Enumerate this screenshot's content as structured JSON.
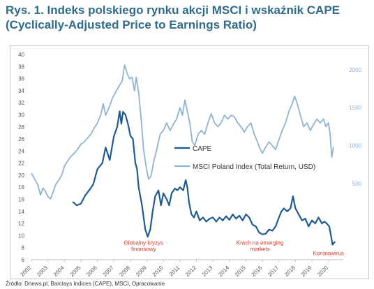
{
  "title_line1": "Rys. 1. Indeks polskiego rynku akcji MSCI i wskaźnik CAPE",
  "title_line2": "(Cyclically-Adjusted Price to Earnings Ratio)",
  "source": "Źródło: Dnews.pl, Barclays Indices (CAPE), MSCI, Opracowanie",
  "chart_data": {
    "type": "line",
    "title": "Rys. 1. Indeks polskiego rynku akcji MSCI i wskaźnik CAPE (Cyclically-Adjusted Price to Earnings Ratio)",
    "xlabel": "",
    "ylabel": "",
    "x_ticks": [
      "2002",
      "2003",
      "2004",
      "2005",
      "2006",
      "2007",
      "2008",
      "2009",
      "2010",
      "2011",
      "2012",
      "2013",
      "2014",
      "2015",
      "2016",
      "2017",
      "2018",
      "2019",
      "2020"
    ],
    "xlim": [
      2002,
      2020.9
    ],
    "left_axis": {
      "ylim": [
        6,
        40
      ],
      "ticks": [
        6,
        8,
        10,
        12,
        14,
        16,
        18,
        20,
        22,
        24,
        26,
        28,
        30,
        32,
        34,
        36,
        38,
        40
      ]
    },
    "right_axis": {
      "ylim": [
        -500,
        2200
      ],
      "ticks": [
        500,
        1000,
        1500,
        2000
      ]
    },
    "grid": false,
    "legend_position": "center",
    "colors": {
      "cape": "#1f5b92",
      "msci": "#8fb3d3",
      "annotation": "#d93a2b",
      "axis_text": "#555555",
      "right_axis_text": "#8fb3d3"
    },
    "series": [
      {
        "name": "CAPE",
        "axis": "left",
        "points": [
          [
            2004.5,
            15.6
          ],
          [
            2004.75,
            15.0
          ],
          [
            2005.0,
            15.3
          ],
          [
            2005.25,
            16.6
          ],
          [
            2005.5,
            17.5
          ],
          [
            2005.75,
            18.5
          ],
          [
            2006.0,
            21.0
          ],
          [
            2006.3,
            22.0
          ],
          [
            2006.5,
            24.6
          ],
          [
            2006.75,
            22.5
          ],
          [
            2007.0,
            26.5
          ],
          [
            2007.2,
            28.0
          ],
          [
            2007.35,
            30.6
          ],
          [
            2007.45,
            28.5
          ],
          [
            2007.55,
            30.5
          ],
          [
            2007.7,
            30.0
          ],
          [
            2007.85,
            28.5
          ],
          [
            2008.0,
            26.5
          ],
          [
            2008.15,
            26.0
          ],
          [
            2008.3,
            22.0
          ],
          [
            2008.4,
            21.0
          ],
          [
            2008.5,
            18.0
          ],
          [
            2008.7,
            15.0
          ],
          [
            2008.9,
            11.0
          ],
          [
            2009.05,
            9.8
          ],
          [
            2009.2,
            11.0
          ],
          [
            2009.35,
            14.0
          ],
          [
            2009.5,
            16.5
          ],
          [
            2009.7,
            17.5
          ],
          [
            2009.85,
            15.0
          ],
          [
            2010.0,
            17.0
          ],
          [
            2010.2,
            16.0
          ],
          [
            2010.35,
            15.0
          ],
          [
            2010.5,
            17.0
          ],
          [
            2010.7,
            17.8
          ],
          [
            2010.85,
            17.5
          ],
          [
            2011.0,
            18.0
          ],
          [
            2011.2,
            17.5
          ],
          [
            2011.35,
            19.2
          ],
          [
            2011.45,
            18.0
          ],
          [
            2011.55,
            15.5
          ],
          [
            2011.7,
            13.5
          ],
          [
            2011.85,
            13.0
          ],
          [
            2012.0,
            14.0
          ],
          [
            2012.2,
            12.5
          ],
          [
            2012.4,
            13.0
          ],
          [
            2012.6,
            12.3
          ],
          [
            2012.8,
            12.8
          ],
          [
            2013.0,
            13.0
          ],
          [
            2013.2,
            12.3
          ],
          [
            2013.4,
            13.0
          ],
          [
            2013.6,
            12.5
          ],
          [
            2013.8,
            13.2
          ],
          [
            2014.0,
            12.6
          ],
          [
            2014.2,
            13.5
          ],
          [
            2014.4,
            12.8
          ],
          [
            2014.6,
            13.3
          ],
          [
            2014.8,
            12.5
          ],
          [
            2015.0,
            13.5
          ],
          [
            2015.2,
            13.0
          ],
          [
            2015.4,
            11.8
          ],
          [
            2015.6,
            11.5
          ],
          [
            2015.8,
            10.5
          ],
          [
            2016.0,
            10.2
          ],
          [
            2016.2,
            10.3
          ],
          [
            2016.4,
            11.0
          ],
          [
            2016.6,
            10.8
          ],
          [
            2016.8,
            11.5
          ],
          [
            2017.0,
            13.0
          ],
          [
            2017.15,
            14.0
          ],
          [
            2017.3,
            14.5
          ],
          [
            2017.5,
            14.0
          ],
          [
            2017.7,
            14.5
          ],
          [
            2017.85,
            16.5
          ],
          [
            2018.0,
            14.5
          ],
          [
            2018.2,
            13.5
          ],
          [
            2018.4,
            12.5
          ],
          [
            2018.6,
            12.8
          ],
          [
            2018.8,
            11.5
          ],
          [
            2019.0,
            12.5
          ],
          [
            2019.2,
            12.0
          ],
          [
            2019.4,
            13.0
          ],
          [
            2019.6,
            12.0
          ],
          [
            2019.75,
            12.3
          ],
          [
            2019.9,
            12.0
          ],
          [
            2020.05,
            11.5
          ],
          [
            2020.15,
            10.0
          ],
          [
            2020.25,
            8.5
          ],
          [
            2020.4,
            9.0
          ]
        ]
      },
      {
        "name": "MSCI Poland Index (Total Return, USD)",
        "axis": "right",
        "points": [
          [
            2002.0,
            640
          ],
          [
            2002.2,
            560
          ],
          [
            2002.4,
            480
          ],
          [
            2002.55,
            350
          ],
          [
            2002.7,
            440
          ],
          [
            2002.85,
            400
          ],
          [
            2003.0,
            330
          ],
          [
            2003.15,
            300
          ],
          [
            2003.3,
            380
          ],
          [
            2003.5,
            500
          ],
          [
            2003.7,
            560
          ],
          [
            2003.85,
            620
          ],
          [
            2004.0,
            730
          ],
          [
            2004.2,
            800
          ],
          [
            2004.4,
            860
          ],
          [
            2004.6,
            900
          ],
          [
            2004.8,
            950
          ],
          [
            2005.0,
            1020
          ],
          [
            2005.2,
            1050
          ],
          [
            2005.4,
            1100
          ],
          [
            2005.6,
            1150
          ],
          [
            2005.8,
            1230
          ],
          [
            2006.0,
            1300
          ],
          [
            2006.2,
            1400
          ],
          [
            2006.35,
            1550
          ],
          [
            2006.5,
            1400
          ],
          [
            2006.7,
            1500
          ],
          [
            2006.9,
            1620
          ],
          [
            2007.1,
            1700
          ],
          [
            2007.3,
            1780
          ],
          [
            2007.5,
            1850
          ],
          [
            2007.65,
            2060
          ],
          [
            2007.8,
            1950
          ],
          [
            2007.95,
            1880
          ],
          [
            2008.1,
            1900
          ],
          [
            2008.25,
            1720
          ],
          [
            2008.35,
            1900
          ],
          [
            2008.5,
            1700
          ],
          [
            2008.65,
            1350
          ],
          [
            2008.8,
            950
          ],
          [
            2008.95,
            720
          ],
          [
            2009.1,
            560
          ],
          [
            2009.25,
            600
          ],
          [
            2009.4,
            780
          ],
          [
            2009.6,
            950
          ],
          [
            2009.8,
            1150
          ],
          [
            2010.0,
            1200
          ],
          [
            2010.2,
            1300
          ],
          [
            2010.4,
            1200
          ],
          [
            2010.6,
            1280
          ],
          [
            2010.8,
            1350
          ],
          [
            2011.0,
            1500
          ],
          [
            2011.15,
            1400
          ],
          [
            2011.3,
            1600
          ],
          [
            2011.45,
            1450
          ],
          [
            2011.6,
            1300
          ],
          [
            2011.75,
            1050
          ],
          [
            2011.9,
            1000
          ],
          [
            2012.1,
            1150
          ],
          [
            2012.3,
            1200
          ],
          [
            2012.5,
            1150
          ],
          [
            2012.7,
            1300
          ],
          [
            2012.9,
            1420
          ],
          [
            2013.1,
            1300
          ],
          [
            2013.3,
            1250
          ],
          [
            2013.5,
            1300
          ],
          [
            2013.7,
            1400
          ],
          [
            2013.9,
            1350
          ],
          [
            2014.1,
            1400
          ],
          [
            2014.3,
            1380
          ],
          [
            2014.5,
            1300
          ],
          [
            2014.7,
            1250
          ],
          [
            2014.9,
            1180
          ],
          [
            2015.1,
            1250
          ],
          [
            2015.3,
            1300
          ],
          [
            2015.5,
            1150
          ],
          [
            2015.7,
            1050
          ],
          [
            2015.85,
            960
          ],
          [
            2016.0,
            900
          ],
          [
            2016.2,
            980
          ],
          [
            2016.4,
            1050
          ],
          [
            2016.6,
            1000
          ],
          [
            2016.8,
            950
          ],
          [
            2017.0,
            1080
          ],
          [
            2017.2,
            1200
          ],
          [
            2017.4,
            1300
          ],
          [
            2017.6,
            1450
          ],
          [
            2017.8,
            1550
          ],
          [
            2017.95,
            1650
          ],
          [
            2018.1,
            1560
          ],
          [
            2018.3,
            1400
          ],
          [
            2018.5,
            1250
          ],
          [
            2018.7,
            1300
          ],
          [
            2018.9,
            1200
          ],
          [
            2019.1,
            1280
          ],
          [
            2019.3,
            1350
          ],
          [
            2019.5,
            1300
          ],
          [
            2019.7,
            1350
          ],
          [
            2019.85,
            1250
          ],
          [
            2020.0,
            1300
          ],
          [
            2020.1,
            1150
          ],
          [
            2020.2,
            850
          ],
          [
            2020.3,
            980
          ]
        ]
      }
    ],
    "annotations": [
      {
        "text_lines": [
          "Globalny kryzys",
          "finansowy"
        ],
        "x": 2008.8,
        "y": 7.8
      },
      {
        "text_lines": [
          "Krach na emerging",
          "markets"
        ],
        "x": 2015.85,
        "y": 7.8
      },
      {
        "text_lines": [
          "Koronawirus"
        ],
        "x": 2020.0,
        "y": 7.1
      }
    ]
  }
}
